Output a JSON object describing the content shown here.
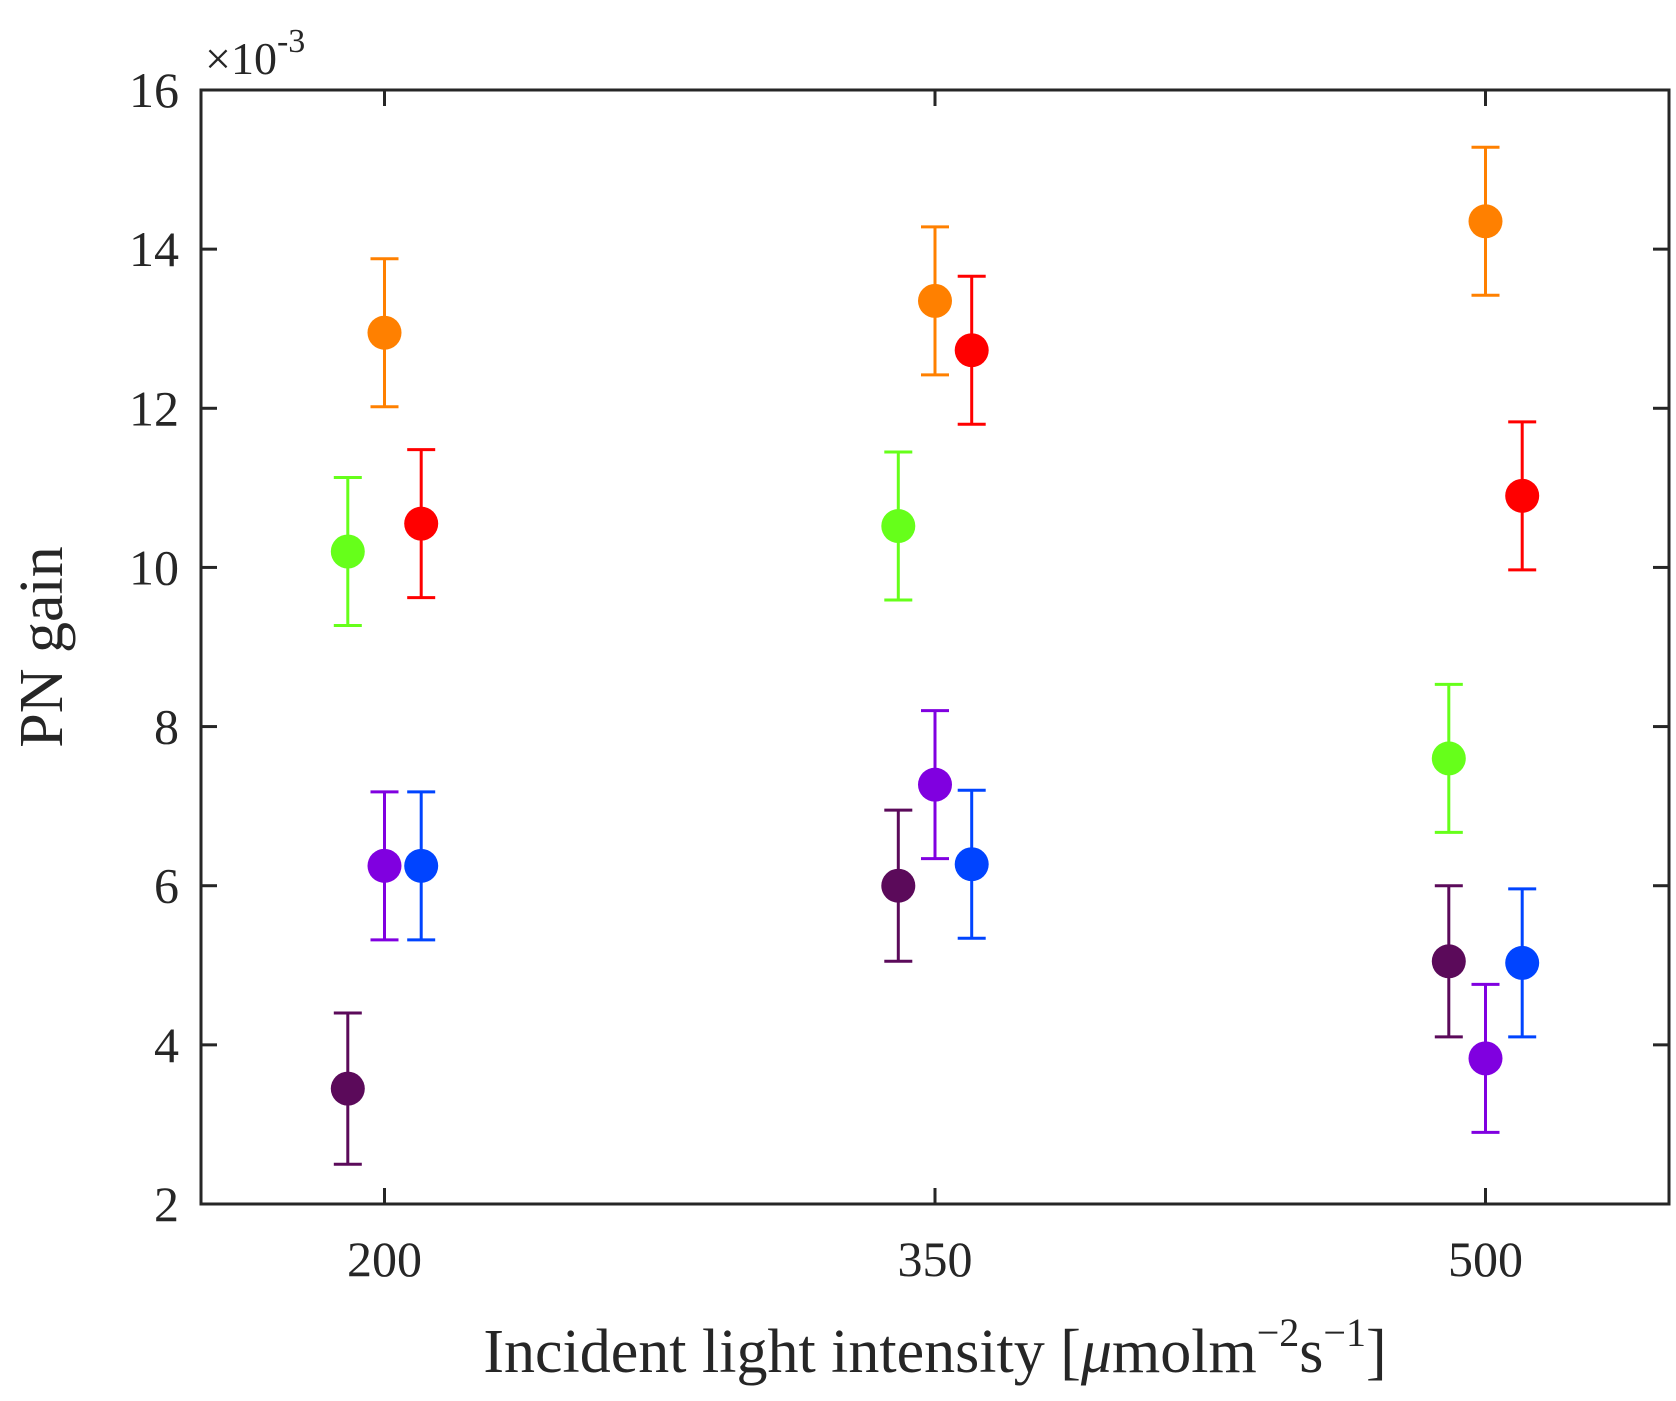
{
  "chart_data": {
    "type": "scatter",
    "title": "",
    "xlabel": "Incident light intensity [",
    "xlabel_mu": "μ",
    "xlabel_unit": "molm",
    "xlabel_exp1": "−2",
    "xlabel_s": "s",
    "xlabel_exp2": "−1",
    "xlabel_close": "]",
    "ylabel": "PN gain",
    "y_multiplier_base": "×10",
    "y_multiplier_exp": "-3",
    "x_ticks": [
      "200",
      "350",
      "500"
    ],
    "x_tick_values": [
      200,
      350,
      500
    ],
    "y_ticks": [
      "2",
      "4",
      "6",
      "8",
      "10",
      "12",
      "14",
      "16"
    ],
    "y_tick_values": [
      2,
      4,
      6,
      8,
      10,
      12,
      14,
      16
    ],
    "xlim": [
      150,
      550
    ],
    "ylim": [
      2,
      16
    ],
    "grid": false,
    "error_bars": true,
    "series": [
      {
        "name": "dark-purple",
        "color": "#5b0a5a",
        "x": [
          190,
          340,
          490
        ],
        "y": [
          3.45,
          6.0,
          5.05
        ],
        "err": [
          0.95,
          0.95,
          0.95
        ]
      },
      {
        "name": "green",
        "color": "#66ff1a",
        "x": [
          190,
          340,
          490
        ],
        "y": [
          10.2,
          10.52,
          7.6
        ],
        "err": [
          0.93,
          0.93,
          0.93
        ]
      },
      {
        "name": "orange",
        "color": "#ff8000",
        "x": [
          200,
          350,
          500
        ],
        "y": [
          12.95,
          13.35,
          14.35
        ],
        "err": [
          0.93,
          0.93,
          0.93
        ]
      },
      {
        "name": "violet",
        "color": "#8000e0",
        "x": [
          200,
          350,
          500
        ],
        "y": [
          6.25,
          7.27,
          3.83
        ],
        "err": [
          0.93,
          0.93,
          0.93
        ]
      },
      {
        "name": "red",
        "color": "#ff0000",
        "x": [
          210,
          360,
          510
        ],
        "y": [
          10.55,
          12.73,
          10.9
        ],
        "err": [
          0.93,
          0.93,
          0.93
        ]
      },
      {
        "name": "blue",
        "color": "#0044ff",
        "x": [
          210,
          360,
          510
        ],
        "y": [
          6.25,
          6.27,
          5.03
        ],
        "err": [
          0.93,
          0.93,
          0.93
        ]
      }
    ]
  }
}
